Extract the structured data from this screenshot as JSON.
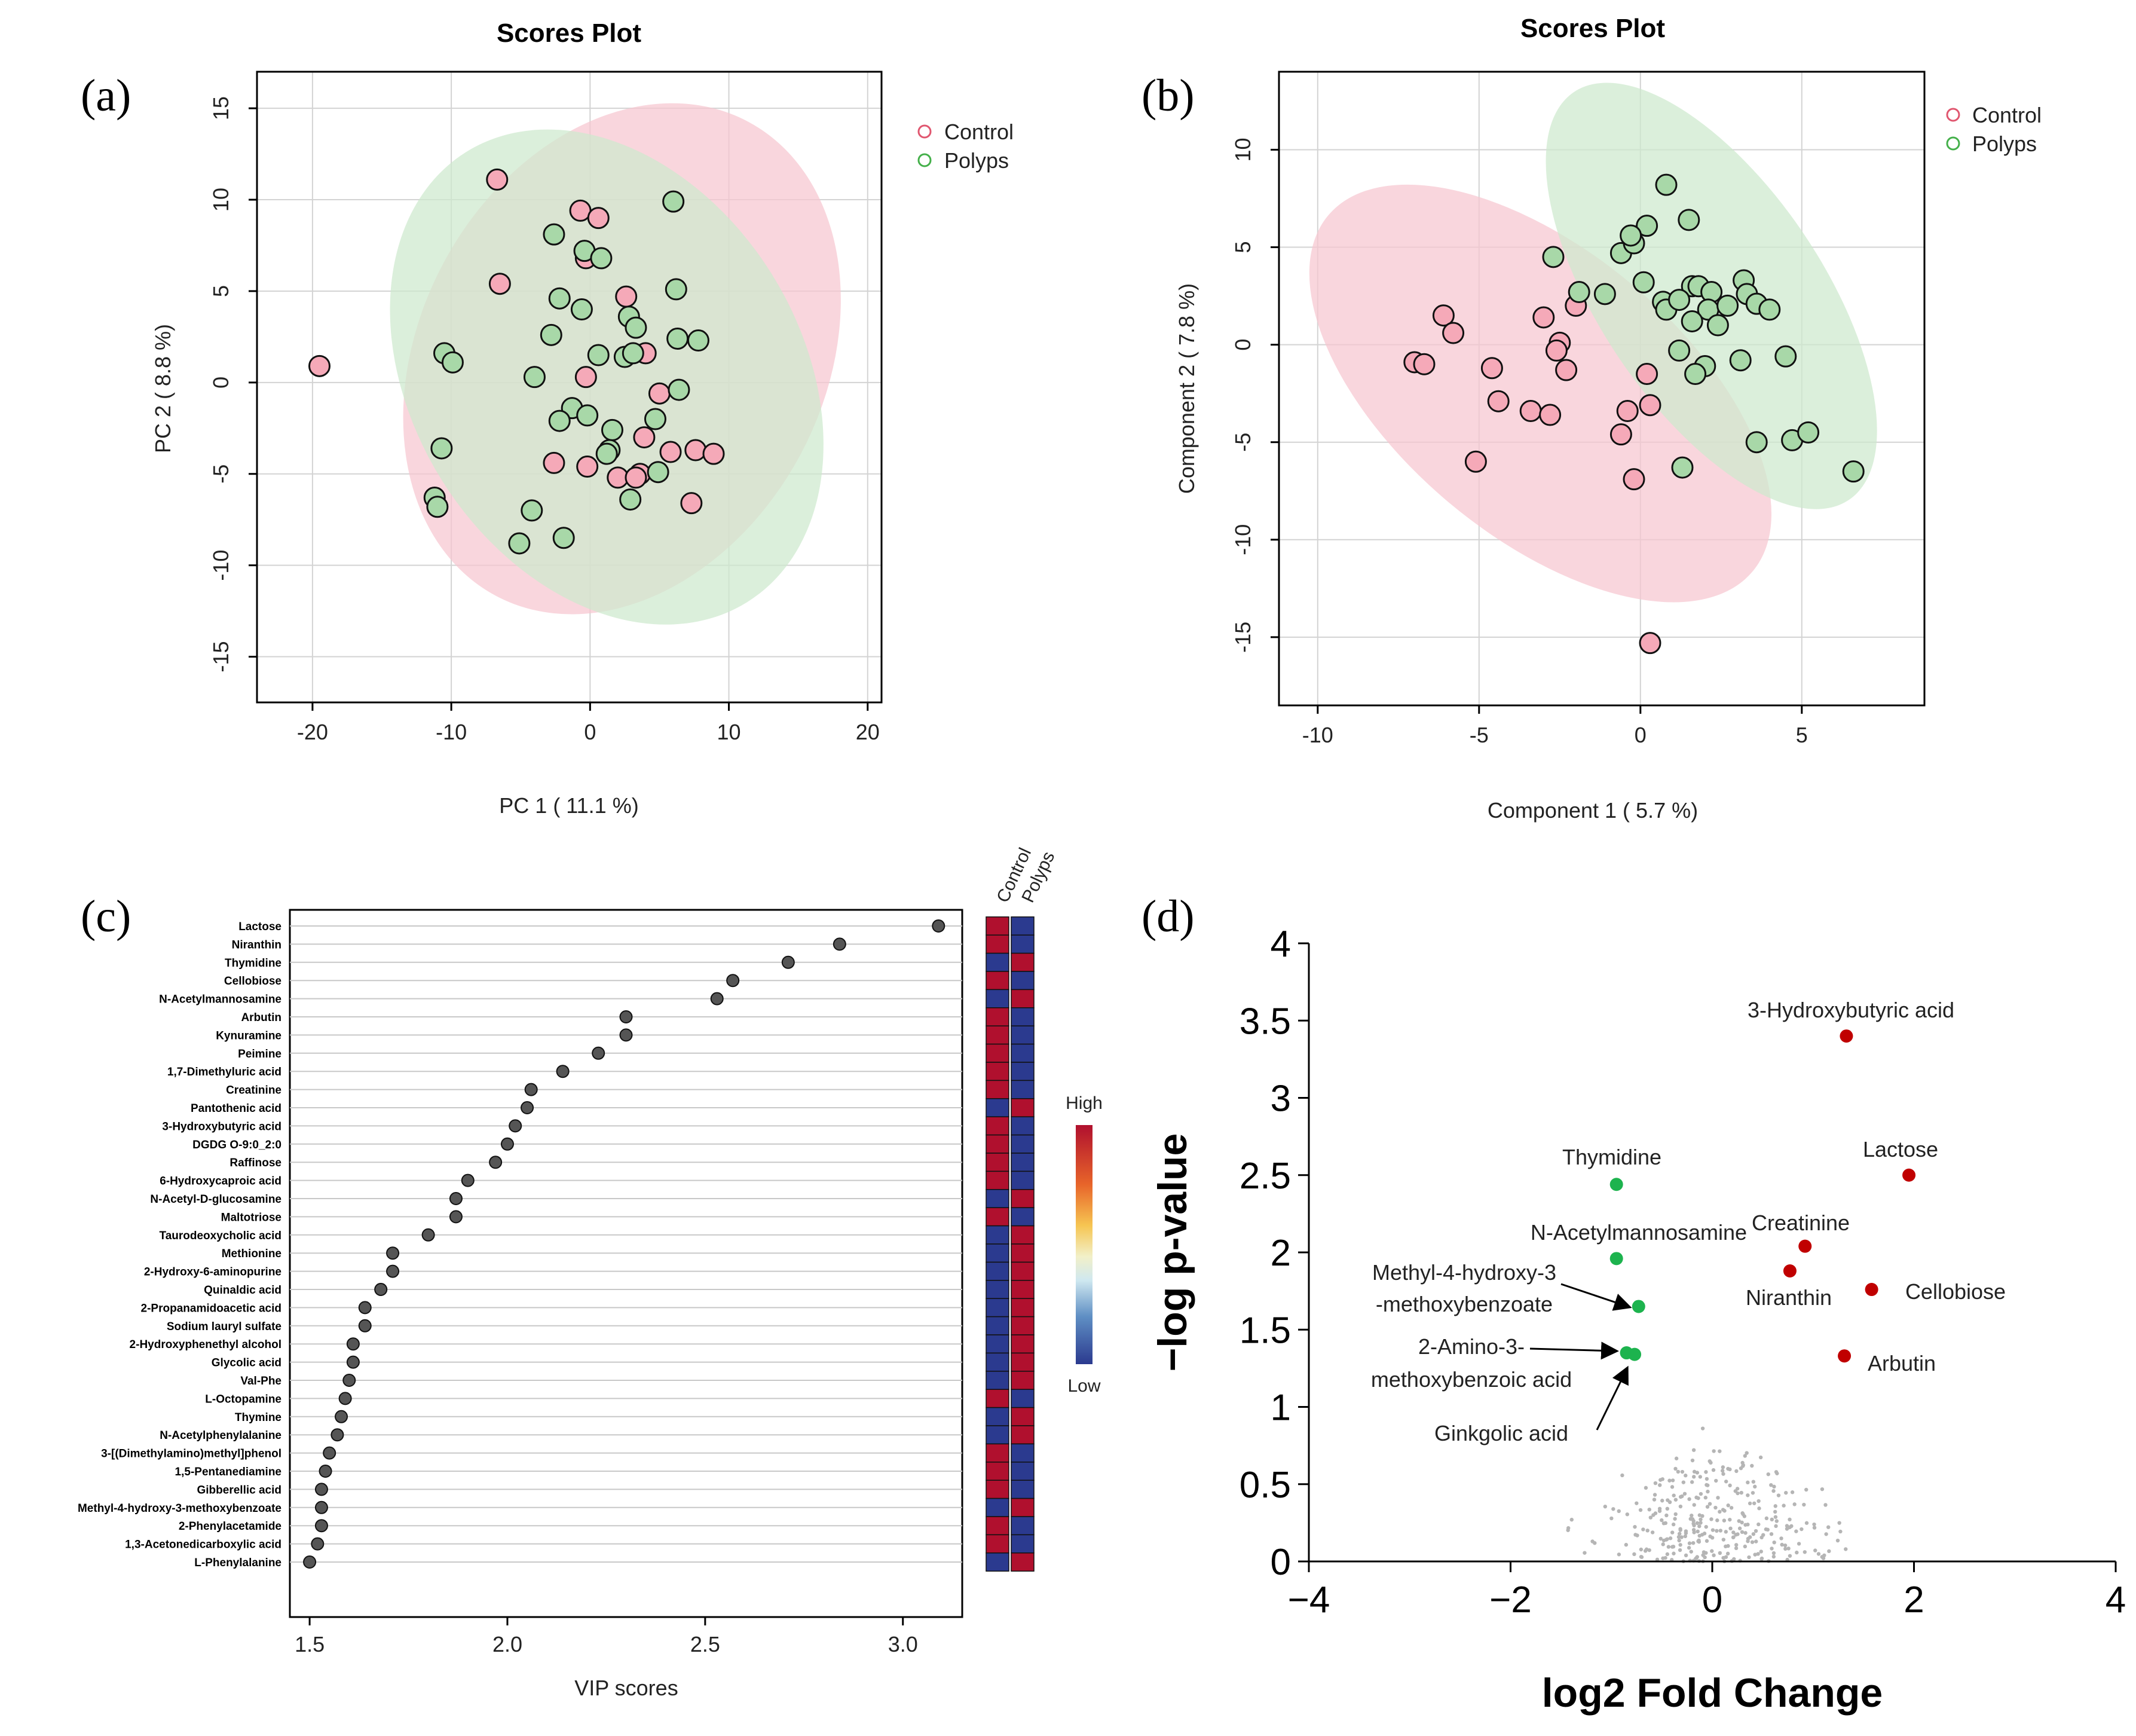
{
  "panels": {
    "a": {
      "letter": "(a)"
    },
    "b": {
      "letter": "(b)"
    },
    "c": {
      "letter": "(c)"
    },
    "d": {
      "letter": "(d)"
    }
  },
  "colors": {
    "control_fill": "#f5a9b8",
    "control_ellipse": "#f7c6d0",
    "control_stroke": "#e0566f",
    "polyps_fill": "#a8d8a8",
    "polyps_ellipse": "#cde9cd",
    "polyps_stroke": "#44b04a",
    "heat_high": "#b0102e",
    "heat_low": "#2b3a8f",
    "volc_red": "#c00000",
    "volc_green": "#1db34e",
    "volc_grey": "#b5b5b5"
  },
  "chart_data": [
    {
      "id": "a",
      "type": "scatter",
      "title": "Scores Plot",
      "xlabel": "PC 1 ( 11.1 %)",
      "ylabel": "PC 2 ( 8.8 %)",
      "xlim": [
        -24,
        21
      ],
      "ylim": [
        -17.5,
        17
      ],
      "xticks": [
        -20,
        -10,
        0,
        10,
        20
      ],
      "yticks": [
        -15,
        -10,
        -5,
        0,
        5,
        10,
        15
      ],
      "grid": true,
      "legend": {
        "position": "top-right",
        "entries": [
          "Control",
          "Polyps"
        ]
      },
      "ellipses": [
        {
          "group": "Control",
          "cx": 2.3,
          "cy": 1.3,
          "rx": 16.7,
          "ry": 12.6,
          "angle_deg": -62
        },
        {
          "group": "Polyps",
          "cx": 1.2,
          "cy": 0.3,
          "rx": 16.5,
          "ry": 12.1,
          "angle_deg": 58
        }
      ],
      "series": [
        {
          "name": "Control",
          "points": [
            [
              -19.5,
              0.9
            ],
            [
              -6.7,
              11.1
            ],
            [
              -6.5,
              5.4
            ],
            [
              -0.7,
              9.4
            ],
            [
              0.6,
              9.0
            ],
            [
              -0.3,
              6.8
            ],
            [
              2.6,
              4.7
            ],
            [
              -0.3,
              0.3
            ],
            [
              4.0,
              1.6
            ],
            [
              5.0,
              -0.6
            ],
            [
              3.9,
              -3.0
            ],
            [
              -2.6,
              -4.4
            ],
            [
              -0.2,
              -4.6
            ],
            [
              2.0,
              -5.2
            ],
            [
              3.6,
              -5.0
            ],
            [
              3.3,
              -5.2
            ],
            [
              5.8,
              -3.8
            ],
            [
              7.6,
              -3.7
            ],
            [
              8.9,
              -3.9
            ],
            [
              7.3,
              -6.6
            ]
          ]
        },
        {
          "name": "Polyps",
          "points": [
            [
              6.0,
              9.9
            ],
            [
              -2.6,
              8.1
            ],
            [
              -0.4,
              7.2
            ],
            [
              0.8,
              6.8
            ],
            [
              -2.2,
              4.6
            ],
            [
              -0.6,
              4.0
            ],
            [
              6.2,
              5.1
            ],
            [
              2.8,
              3.6
            ],
            [
              3.3,
              3.0
            ],
            [
              -2.8,
              2.6
            ],
            [
              -10.5,
              1.6
            ],
            [
              -9.9,
              1.1
            ],
            [
              0.6,
              1.5
            ],
            [
              2.5,
              1.4
            ],
            [
              3.1,
              1.6
            ],
            [
              6.3,
              2.4
            ],
            [
              7.8,
              2.3
            ],
            [
              -4.0,
              0.3
            ],
            [
              6.4,
              -0.4
            ],
            [
              -1.3,
              -1.4
            ],
            [
              -0.2,
              -1.8
            ],
            [
              -2.2,
              -2.1
            ],
            [
              1.6,
              -2.6
            ],
            [
              4.7,
              -2.0
            ],
            [
              1.4,
              -3.7
            ],
            [
              1.2,
              -3.9
            ],
            [
              4.9,
              -4.9
            ],
            [
              -10.7,
              -3.6
            ],
            [
              -11.2,
              -6.3
            ],
            [
              -11.0,
              -6.8
            ],
            [
              -4.2,
              -7.0
            ],
            [
              2.9,
              -6.4
            ],
            [
              -5.1,
              -8.8
            ],
            [
              -1.9,
              -8.5
            ]
          ]
        }
      ]
    },
    {
      "id": "b",
      "type": "scatter",
      "title": "Scores Plot",
      "xlabel": "Component 1 ( 5.7 %)",
      "ylabel": "Component 2 ( 7.8 %)",
      "xlim": [
        -11.2,
        8.8
      ],
      "ylim": [
        -18.5,
        14
      ],
      "xticks": [
        -10,
        -5,
        0,
        5
      ],
      "yticks": [
        -15,
        -10,
        -5,
        0,
        5,
        10
      ],
      "grid": true,
      "legend": {
        "position": "top-right",
        "entries": [
          "Control",
          "Polyps"
        ]
      },
      "ellipses": [
        {
          "group": "Control",
          "cx": -3.1,
          "cy": -2.5,
          "rx": 10.7,
          "ry": 5.5,
          "angle_deg": 40
        },
        {
          "group": "Polyps",
          "cx": 2.2,
          "cy": 2.5,
          "rx": 9.5,
          "ry": 4.3,
          "angle_deg": 56
        }
      ],
      "series": [
        {
          "name": "Control",
          "points": [
            [
              -6.1,
              1.5
            ],
            [
              -5.8,
              0.6
            ],
            [
              -7.0,
              -0.9
            ],
            [
              -6.7,
              -1.0
            ],
            [
              -4.6,
              -1.2
            ],
            [
              -3.0,
              1.4
            ],
            [
              -2.5,
              0.1
            ],
            [
              -2.6,
              -0.3
            ],
            [
              -2.3,
              -1.3
            ],
            [
              -2.0,
              2.0
            ],
            [
              -4.4,
              -2.9
            ],
            [
              -3.4,
              -3.4
            ],
            [
              -2.8,
              -3.6
            ],
            [
              0.2,
              -1.5
            ],
            [
              -0.4,
              -3.4
            ],
            [
              0.3,
              -3.1
            ],
            [
              -0.6,
              -4.6
            ],
            [
              -5.1,
              -6.0
            ],
            [
              -0.2,
              -6.9
            ],
            [
              0.3,
              -15.3
            ]
          ]
        },
        {
          "name": "Polyps",
          "points": [
            [
              0.8,
              8.2
            ],
            [
              1.5,
              6.4
            ],
            [
              -0.6,
              4.7
            ],
            [
              -0.2,
              5.2
            ],
            [
              0.2,
              6.1
            ],
            [
              -0.3,
              5.6
            ],
            [
              -2.7,
              4.5
            ],
            [
              -1.1,
              2.6
            ],
            [
              -1.9,
              2.7
            ],
            [
              0.1,
              3.2
            ],
            [
              1.6,
              3.0
            ],
            [
              1.8,
              3.0
            ],
            [
              2.2,
              2.7
            ],
            [
              3.2,
              3.3
            ],
            [
              0.7,
              2.2
            ],
            [
              0.8,
              1.8
            ],
            [
              1.2,
              2.3
            ],
            [
              2.1,
              1.8
            ],
            [
              2.7,
              2.0
            ],
            [
              3.3,
              2.6
            ],
            [
              3.6,
              2.1
            ],
            [
              4.0,
              1.8
            ],
            [
              1.6,
              1.2
            ],
            [
              2.4,
              1.0
            ],
            [
              1.2,
              -0.3
            ],
            [
              2.0,
              -1.1
            ],
            [
              1.7,
              -1.5
            ],
            [
              3.1,
              -0.8
            ],
            [
              4.5,
              -0.6
            ],
            [
              1.3,
              -6.3
            ],
            [
              3.6,
              -5.0
            ],
            [
              4.7,
              -4.9
            ],
            [
              5.2,
              -4.5
            ],
            [
              6.6,
              -6.5
            ]
          ]
        }
      ]
    },
    {
      "id": "c",
      "type": "scatter",
      "xlabel": "VIP scores",
      "xlim": [
        1.45,
        3.15
      ],
      "xticks": [
        "1.5",
        "2.0",
        "2.5",
        "3.0"
      ],
      "heatmap_columns": [
        "Control",
        "Polyps"
      ],
      "colorbar": {
        "high_label": "High",
        "low_label": "Low"
      },
      "features": [
        {
          "name": "Lactose",
          "vip": 3.09,
          "control": "high",
          "polyps": "low"
        },
        {
          "name": "Niranthin",
          "vip": 2.84,
          "control": "high",
          "polyps": "low"
        },
        {
          "name": "Thymidine",
          "vip": 2.71,
          "control": "low",
          "polyps": "high"
        },
        {
          "name": "Cellobiose",
          "vip": 2.57,
          "control": "high",
          "polyps": "low"
        },
        {
          "name": "N-Acetylmannosamine",
          "vip": 2.53,
          "control": "low",
          "polyps": "high"
        },
        {
          "name": "Arbutin",
          "vip": 2.3,
          "control": "high",
          "polyps": "low"
        },
        {
          "name": "Kynuramine",
          "vip": 2.3,
          "control": "high",
          "polyps": "low"
        },
        {
          "name": "Peimine",
          "vip": 2.23,
          "control": "high",
          "polyps": "low"
        },
        {
          "name": "1,7-Dimethyluric acid",
          "vip": 2.14,
          "control": "high",
          "polyps": "low"
        },
        {
          "name": "Creatinine",
          "vip": 2.06,
          "control": "high",
          "polyps": "low"
        },
        {
          "name": "Pantothenic acid",
          "vip": 2.05,
          "control": "low",
          "polyps": "high"
        },
        {
          "name": "3-Hydroxybutyric acid",
          "vip": 2.02,
          "control": "high",
          "polyps": "low"
        },
        {
          "name": "DGDG O-9:0_2:0",
          "vip": 2.0,
          "control": "high",
          "polyps": "low"
        },
        {
          "name": "Raffinose",
          "vip": 1.97,
          "control": "high",
          "polyps": "low"
        },
        {
          "name": "6-Hydroxycaproic acid",
          "vip": 1.9,
          "control": "high",
          "polyps": "low"
        },
        {
          "name": "N-Acetyl-D-glucosamine",
          "vip": 1.87,
          "control": "low",
          "polyps": "high"
        },
        {
          "name": "Maltotriose",
          "vip": 1.87,
          "control": "high",
          "polyps": "low"
        },
        {
          "name": "Taurodeoxycholic acid",
          "vip": 1.8,
          "control": "low",
          "polyps": "high"
        },
        {
          "name": "Methionine",
          "vip": 1.71,
          "control": "low",
          "polyps": "high"
        },
        {
          "name": "2-Hydroxy-6-aminopurine",
          "vip": 1.71,
          "control": "low",
          "polyps": "high"
        },
        {
          "name": "Quinaldic acid",
          "vip": 1.68,
          "control": "low",
          "polyps": "high"
        },
        {
          "name": "2-Propanamidoacetic acid",
          "vip": 1.64,
          "control": "low",
          "polyps": "high"
        },
        {
          "name": "Sodium lauryl sulfate",
          "vip": 1.64,
          "control": "low",
          "polyps": "high"
        },
        {
          "name": "2-Hydroxyphenethyl alcohol",
          "vip": 1.61,
          "control": "low",
          "polyps": "high"
        },
        {
          "name": "Glycolic acid",
          "vip": 1.61,
          "control": "low",
          "polyps": "high"
        },
        {
          "name": "Val-Phe",
          "vip": 1.6,
          "control": "low",
          "polyps": "high"
        },
        {
          "name": "L-Octopamine",
          "vip": 1.59,
          "control": "high",
          "polyps": "low"
        },
        {
          "name": "Thymine",
          "vip": 1.58,
          "control": "low",
          "polyps": "high"
        },
        {
          "name": "N-Acetylphenylalanine",
          "vip": 1.57,
          "control": "low",
          "polyps": "high"
        },
        {
          "name": "3-[(Dimethylamino)methyl]phenol",
          "vip": 1.55,
          "control": "high",
          "polyps": "low"
        },
        {
          "name": "1,5-Pentanediamine",
          "vip": 1.54,
          "control": "high",
          "polyps": "low"
        },
        {
          "name": "Gibberellic acid",
          "vip": 1.53,
          "control": "high",
          "polyps": "low"
        },
        {
          "name": "Methyl-4-hydroxy-3-methoxybenzoate",
          "vip": 1.53,
          "control": "low",
          "polyps": "high"
        },
        {
          "name": "2-Phenylacetamide",
          "vip": 1.53,
          "control": "high",
          "polyps": "low"
        },
        {
          "name": "1,3-Acetonedicarboxylic acid",
          "vip": 1.52,
          "control": "high",
          "polyps": "low"
        },
        {
          "name": "L-Phenylalanine",
          "vip": 1.5,
          "control": "low",
          "polyps": "high"
        }
      ]
    },
    {
      "id": "d",
      "type": "scatter",
      "xlabel": "log2 Fold Change",
      "ylabel": "−log p-value",
      "xlim": [
        -4,
        4
      ],
      "ylim": [
        0,
        4
      ],
      "xticks": [
        "−4",
        "−2",
        "0",
        "2",
        "4"
      ],
      "xtick_values": [
        -4,
        -2,
        0,
        2,
        4
      ],
      "yticks": [
        "0",
        "0.5",
        "1",
        "1.5",
        "2",
        "2.5",
        "3",
        "3.5",
        "4"
      ],
      "ytick_values": [
        0,
        0.5,
        1,
        1.5,
        2,
        2.5,
        3,
        3.5,
        4
      ],
      "significant": [
        {
          "label": "3-Hydroxybutyric acid",
          "x": 1.33,
          "y": 3.4,
          "group": "up"
        },
        {
          "label": "Lactose",
          "x": 1.95,
          "y": 2.5,
          "group": "up"
        },
        {
          "label": "Creatinine",
          "x": 0.92,
          "y": 2.04,
          "group": "up"
        },
        {
          "label": "Niranthin",
          "x": 0.77,
          "y": 1.88,
          "group": "up"
        },
        {
          "label": "Cellobiose",
          "x": 1.58,
          "y": 1.76,
          "group": "up"
        },
        {
          "label": "Arbutin",
          "x": 1.31,
          "y": 1.33,
          "group": "up"
        },
        {
          "label": "Thymidine",
          "x": -0.95,
          "y": 2.44,
          "group": "down"
        },
        {
          "label": "N-Acetylmannosamine",
          "x": -0.95,
          "y": 1.96,
          "group": "down"
        },
        {
          "label": "Methyl-4-hydroxy-3 -methoxybenzoate",
          "x": -0.73,
          "y": 1.65,
          "group": "down"
        },
        {
          "label": "2-Amino-3- methoxybenzoic acid",
          "x": -0.85,
          "y": 1.35,
          "group": "down"
        },
        {
          "label": "Ginkgolic acid",
          "x": -0.77,
          "y": 1.34,
          "group": "down"
        }
      ],
      "annotation_text": {
        "hydroxybutyric": "3-Hydroxybutyric acid",
        "lactose": "Lactose",
        "creatinine": "Creatinine",
        "niranthin": "Niranthin",
        "cellobiose": "Cellobiose",
        "arbutin": "Arbutin",
        "thymidine": "Thymidine",
        "nacetyl": "N-Acetylmannosamine",
        "methyl_1": "Methyl-4-hydroxy-3",
        "methyl_2": "-methoxybenzoate",
        "amino_1": "2-Amino-3-",
        "amino_2": "methoxybenzoic acid",
        "ginkgolic": "Ginkgolic acid"
      }
    }
  ]
}
